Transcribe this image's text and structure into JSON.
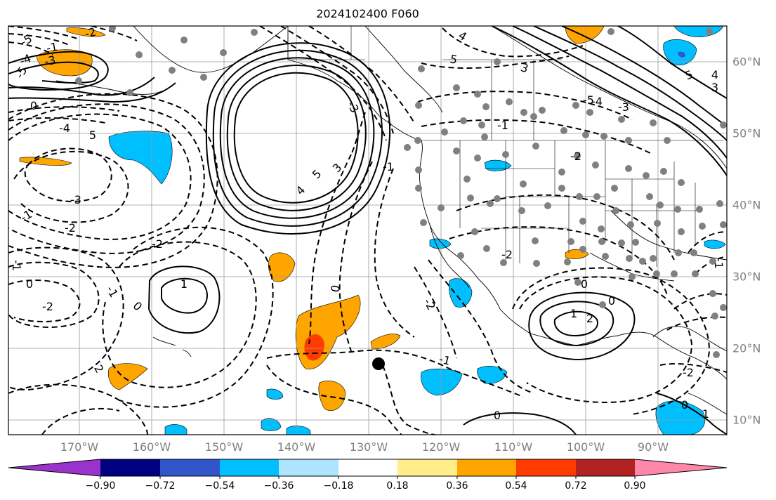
{
  "title": "2024102400 F060",
  "map": {
    "lon_labels": [
      "170°W",
      "160°W",
      "150°W",
      "140°W",
      "130°W",
      "120°W",
      "110°W",
      "100°W",
      "90°W"
    ],
    "lat_labels": [
      "60°N",
      "50°N",
      "40°N",
      "30°N",
      "20°N",
      "10°N"
    ],
    "marker": "filled-circle"
  },
  "contour_labels": [
    "-5",
    "-4",
    "-3",
    "-2",
    "-1",
    "0",
    "-4",
    "5",
    "-5",
    "4",
    "3",
    "5",
    "-1",
    "0",
    "-2",
    "-3",
    "-2",
    "-1",
    "0",
    "1",
    "2",
    "-1",
    "-2",
    "-1",
    "-3",
    "0",
    "-2",
    "4",
    "5",
    "3",
    "-2",
    "1",
    "2",
    "0",
    "-2",
    "-1",
    "0",
    "5",
    "4",
    "3",
    "-1",
    "-2",
    "0",
    "-5",
    "-4",
    "-3",
    "1",
    "-1",
    "0"
  ],
  "colorbar": {
    "ticks": [
      "−0.90",
      "−0.72",
      "−0.54",
      "−0.36",
      "−0.18",
      "0.18",
      "0.36",
      "0.54",
      "0.72",
      "0.90"
    ],
    "colors": [
      "#9933cc",
      "#000080",
      "#3355cc",
      "#00bfff",
      "#aee4ff",
      "#ffffff",
      "#ffee88",
      "#ffa500",
      "#ff3b00",
      "#b22222",
      "#ff88aa"
    ]
  }
}
